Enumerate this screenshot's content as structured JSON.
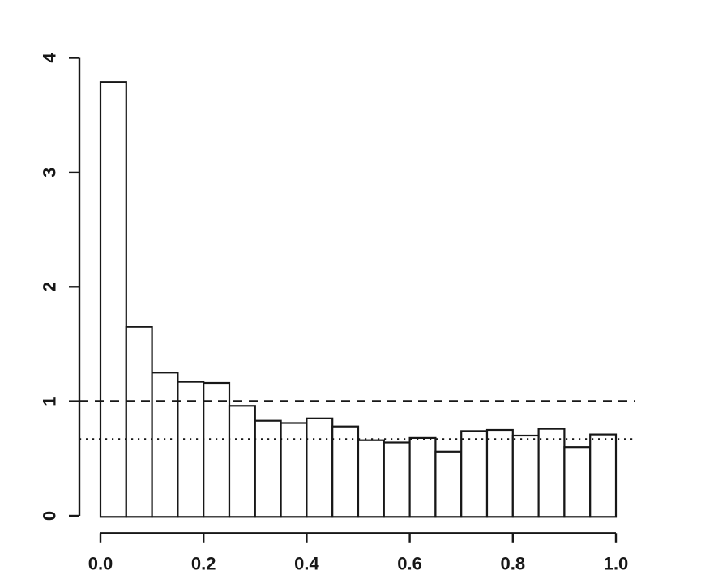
{
  "figure": {
    "background": "#ffffff",
    "ink_color": "#171717"
  },
  "chart_data": {
    "type": "bar",
    "subtype": "histogram",
    "title": "",
    "xlabel": "",
    "ylabel": "",
    "xlim": [
      0.0,
      1.0
    ],
    "ylim": [
      0,
      4
    ],
    "grid": "off",
    "legend": "none",
    "bin_width": 0.05,
    "bin_edges": [
      0.0,
      0.05,
      0.1,
      0.15,
      0.2,
      0.25,
      0.3,
      0.35,
      0.4,
      0.45,
      0.5,
      0.55,
      0.6,
      0.65,
      0.7,
      0.75,
      0.8,
      0.85,
      0.9,
      0.95,
      1.0
    ],
    "values": [
      3.79,
      1.65,
      1.25,
      1.17,
      1.16,
      0.96,
      0.83,
      0.81,
      0.85,
      0.78,
      0.66,
      0.64,
      0.68,
      0.56,
      0.74,
      0.75,
      0.7,
      0.76,
      0.6,
      0.71
    ],
    "x_tick_labels": [
      "0.0",
      "0.2",
      "0.4",
      "0.6",
      "0.8",
      "1.0"
    ],
    "x_tick_values": [
      0.0,
      0.2,
      0.4,
      0.6,
      0.8,
      1.0
    ],
    "y_tick_labels": [
      "0",
      "1",
      "2",
      "3",
      "4"
    ],
    "y_tick_values": [
      0,
      1,
      2,
      3,
      4
    ],
    "bar_fill": "#ffffff",
    "bar_edge": "#171717",
    "reference_lines": [
      {
        "y": 1.0,
        "style": "dashed"
      },
      {
        "y": 0.67,
        "style": "dotted"
      }
    ]
  }
}
